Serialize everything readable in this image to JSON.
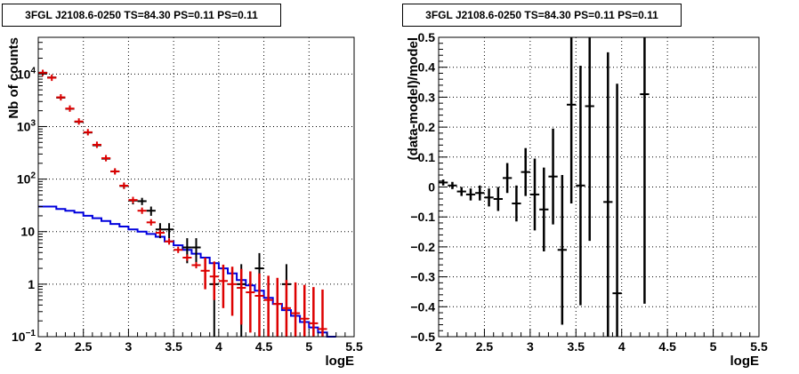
{
  "chart_data": [
    {
      "type": "line",
      "title": "3FGL J2108.6-0250 TS=84.30 PS=0.11 PS=0.11",
      "xlabel": "logE",
      "ylabel": "Nb of counts",
      "xlim": [
        2,
        5.5
      ],
      "ylim": [
        0.1,
        50000
      ],
      "yscale": "log",
      "x_ticks": [
        "2",
        "2.5",
        "3",
        "3.5",
        "4",
        "4.5",
        "5",
        "5.5"
      ],
      "y_ticks": [
        "10^{-1}",
        "1",
        "10",
        "10^{2}",
        "10^{3}",
        "10^{4}"
      ],
      "grid": true,
      "series": [
        {
          "role": "model-total",
          "color": "#dd0000",
          "x": [
            2.05,
            2.15,
            2.25,
            2.35,
            2.45,
            2.55,
            2.65,
            2.75,
            2.85,
            2.95,
            3.05,
            3.15,
            3.25,
            3.35,
            3.45,
            3.55,
            3.65,
            3.75,
            3.85,
            3.95,
            4.05,
            4.15,
            4.25,
            4.35,
            4.45,
            4.55,
            4.65,
            4.75,
            4.85,
            4.95,
            5.05,
            5.15
          ],
          "y": [
            10500,
            8500,
            3600,
            2200,
            1250,
            780,
            450,
            250,
            140,
            75,
            40,
            25,
            15,
            9.5,
            6.5,
            4.5,
            3.2,
            2.3,
            1.8,
            1.4,
            1.15,
            1.0,
            0.85,
            0.7,
            0.6,
            0.5,
            0.42,
            0.35,
            0.28,
            0.22,
            0.18,
            0.14
          ],
          "yerr_low": [
            0,
            0,
            0,
            0,
            0,
            0,
            0,
            0,
            0,
            0,
            0,
            0,
            0,
            0,
            0,
            0,
            0,
            0,
            1.0,
            0.9,
            0.8,
            0.75,
            0.68,
            0.58,
            0.52,
            0.44,
            0.38,
            0.32,
            0.26,
            0.21,
            0.17,
            0.13
          ],
          "yerr_high": [
            0,
            0,
            0,
            0,
            0,
            0,
            0,
            0,
            0,
            0,
            0,
            0,
            0,
            0,
            0,
            0,
            0,
            0,
            1.4,
            1.3,
            1.2,
            1.15,
            1.1,
            1.05,
            1.0,
            0.95,
            0.9,
            0.85,
            0.8,
            0.75,
            0.7,
            0.65
          ]
        },
        {
          "role": "data",
          "color": "#000000",
          "x": [
            2.05,
            2.15,
            2.25,
            2.35,
            2.45,
            2.55,
            2.65,
            2.75,
            2.85,
            2.95,
            3.05,
            3.15,
            3.25,
            3.35,
            3.45,
            3.65,
            3.75,
            3.95,
            4.25,
            4.45,
            4.75
          ],
          "y": [
            10600,
            8600,
            3550,
            2180,
            1230,
            770,
            440,
            245,
            140,
            74,
            39,
            38,
            25,
            11,
            11,
            5,
            5,
            1,
            1,
            2,
            1
          ],
          "xerr": 0.05,
          "yerr_low": [
            100,
            90,
            60,
            45,
            35,
            28,
            21,
            16,
            12,
            9,
            6,
            6,
            5,
            3.5,
            3.5,
            2.5,
            2.5,
            0.99,
            0.99,
            1.4,
            0.99
          ],
          "yerr_high": [
            100,
            90,
            60,
            45,
            35,
            28,
            21,
            16,
            12,
            9,
            6,
            6,
            5,
            3.5,
            3.5,
            2.5,
            2.5,
            1.4,
            1.4,
            1.9,
            1.4
          ]
        },
        {
          "role": "source-model",
          "color": "#0000dd",
          "step": true,
          "edges": [
            2.0,
            2.1,
            2.2,
            2.3,
            2.4,
            2.5,
            2.6,
            2.7,
            2.8,
            2.9,
            3.0,
            3.1,
            3.2,
            3.3,
            3.4,
            3.5,
            3.6,
            3.7,
            3.8,
            3.9,
            4.0,
            4.1,
            4.2,
            4.3,
            4.4,
            4.5,
            4.6,
            4.7,
            4.8,
            4.9,
            5.0,
            5.1,
            5.2,
            5.3
          ],
          "y": [
            30,
            30,
            27,
            25,
            23,
            20,
            18,
            16,
            14,
            12.5,
            11,
            10,
            9,
            8,
            6.5,
            5.5,
            4.5,
            3.8,
            3.2,
            2.5,
            2,
            1.6,
            1.2,
            0.95,
            0.75,
            0.55,
            0.42,
            0.32,
            0.25,
            0.19,
            0.15,
            0.12,
            0.1
          ]
        }
      ]
    },
    {
      "type": "scatter",
      "title": "3FGL J2108.6-0250 TS=84.30 PS=0.11 PS=0.11",
      "xlabel": "logE",
      "ylabel": "(data-model)/model",
      "xlim": [
        2,
        5.5
      ],
      "ylim": [
        -0.5,
        0.5
      ],
      "x_ticks": [
        "2",
        "2.5",
        "3",
        "3.5",
        "4",
        "4.5",
        "5",
        "5.5"
      ],
      "y_ticks": [
        "−0.5",
        "−0.4",
        "−0.3",
        "−0.2",
        "−0.1",
        "0",
        "0.1",
        "0.2",
        "0.3",
        "0.4",
        "0.5"
      ],
      "grid": true,
      "series": [
        {
          "role": "residuals",
          "color": "#000000",
          "x": [
            2.05,
            2.15,
            2.25,
            2.35,
            2.45,
            2.55,
            2.65,
            2.75,
            2.85,
            2.95,
            3.05,
            3.15,
            3.25,
            3.35,
            3.45,
            3.55,
            3.65,
            3.85,
            3.95,
            4.25
          ],
          "y": [
            0.015,
            0.005,
            -0.015,
            -0.025,
            -0.02,
            -0.035,
            -0.04,
            0.03,
            -0.055,
            0.05,
            -0.025,
            -0.075,
            0.035,
            -0.21,
            0.275,
            0.005,
            0.27,
            -0.05,
            -0.355,
            0.31
          ],
          "xerr": 0.05,
          "yerr": [
            0.01,
            0.012,
            0.015,
            0.02,
            0.025,
            0.03,
            0.04,
            0.05,
            0.06,
            0.08,
            0.12,
            0.14,
            0.16,
            0.25,
            0.33,
            0.4,
            0.45,
            0.5,
            0.7,
            0.7
          ]
        }
      ]
    }
  ]
}
